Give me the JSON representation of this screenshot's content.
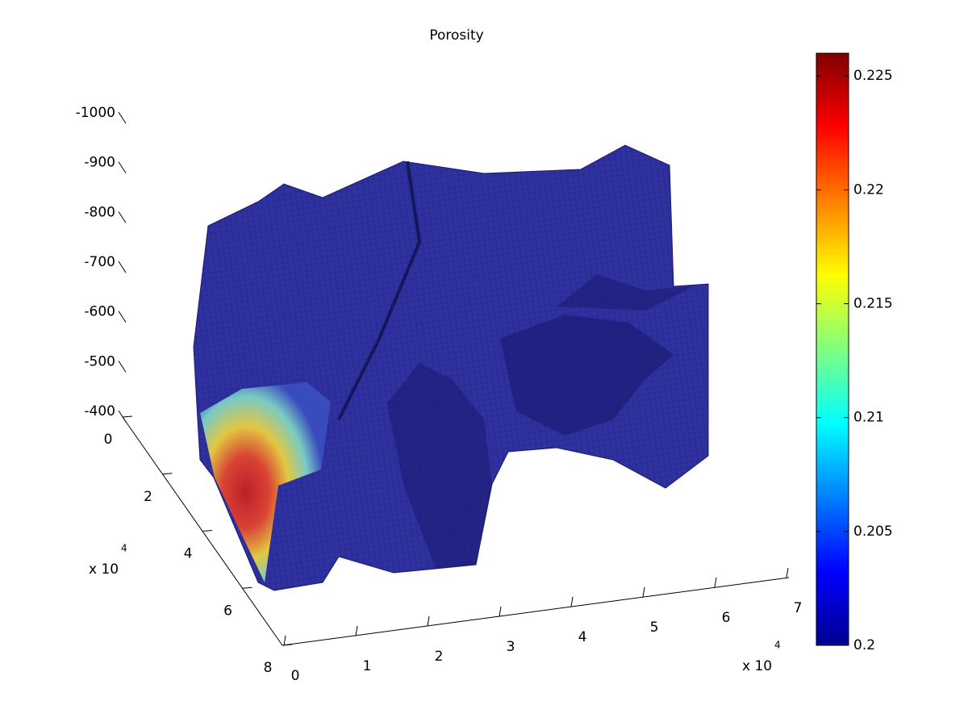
{
  "chart_data": {
    "type": "surface3d",
    "title": "Porosity",
    "xlim": [
      0,
      70000
    ],
    "xticks": [
      0,
      {
        "value": 10000,
        "label": "1"
      },
      {
        "value": 20000,
        "label": "2"
      },
      {
        "value": 30000,
        "label": "3"
      },
      {
        "value": 40000,
        "label": "4"
      },
      {
        "value": 50000,
        "label": "5"
      },
      {
        "value": 60000,
        "label": "6"
      },
      {
        "value": 70000,
        "label": "7"
      }
    ],
    "x_exponent": "x 10",
    "x_exponent_power": "4",
    "ylim": [
      0,
      80000
    ],
    "yticks": [
      0,
      {
        "value": 20000,
        "label": "2"
      },
      {
        "value": 40000,
        "label": "4"
      },
      {
        "value": 60000,
        "label": "6"
      },
      {
        "value": 80000,
        "label": "8"
      }
    ],
    "y_exponent": "x 10",
    "y_exponent_power": "4",
    "zlim": [
      -1000,
      -400
    ],
    "zdir": "reverse",
    "zticks": [
      -1000,
      -900,
      -800,
      -700,
      -600,
      -500,
      -400
    ],
    "colorbar": {
      "clim": [
        0.2,
        0.226
      ],
      "ticks": [
        0.2,
        0.205,
        0.21,
        0.215,
        0.22,
        0.225
      ],
      "colormap": "jet"
    }
  }
}
